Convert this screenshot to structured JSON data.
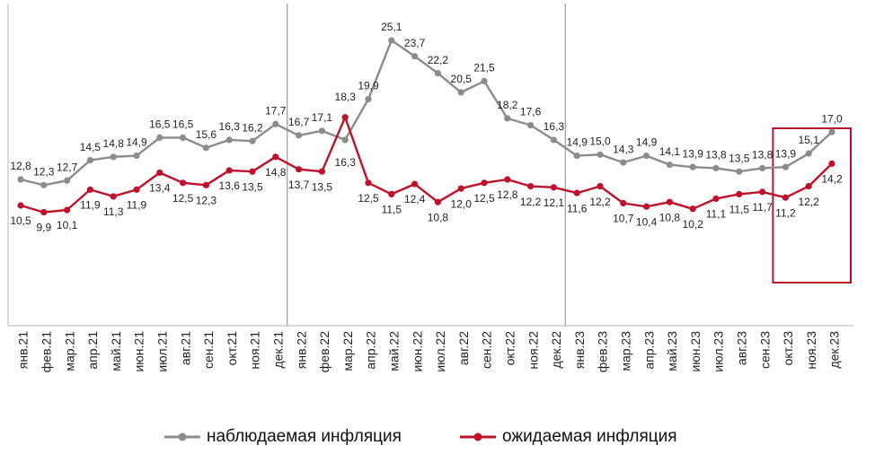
{
  "chart_data": {
    "type": "line",
    "title": "",
    "xlabel": "",
    "ylabel": "",
    "ylim": [
      5,
      27
    ],
    "grid": false,
    "legend_position": "bottom",
    "categories": [
      "янв.21",
      "фев.21",
      "мар.21",
      "апр.21",
      "май.21",
      "июн.21",
      "июл.21",
      "авг.21",
      "сен.21",
      "окт.21",
      "ноя.21",
      "дек.21",
      "янв.22",
      "фев.22",
      "мар.22",
      "апр.22",
      "май.22",
      "июн.22",
      "июл.22",
      "авг.22",
      "сен.22",
      "окт.22",
      "ноя.22",
      "дек.22",
      "янв.23",
      "фев.23",
      "мар.23",
      "апр.23",
      "май.23",
      "июн.23",
      "июл.23",
      "авг.23",
      "сен.23",
      "окт.23",
      "ноя.23",
      "дек.23"
    ],
    "series": [
      {
        "name": "наблюдаемая  инфляция",
        "color": "#8c8c8c",
        "values": [
          12.8,
          12.3,
          12.7,
          14.5,
          14.8,
          14.9,
          16.5,
          16.5,
          15.6,
          16.3,
          16.2,
          17.7,
          16.7,
          17.1,
          16.3,
          19.9,
          25.1,
          23.7,
          22.2,
          20.5,
          21.5,
          18.2,
          17.6,
          16.3,
          14.9,
          15.0,
          14.3,
          14.9,
          14.1,
          13.9,
          13.8,
          13.5,
          13.8,
          13.9,
          15.1,
          17.0
        ],
        "labels": [
          "12,8",
          "12,3",
          "12,7",
          "14,5",
          "14,8",
          "14,9",
          "16,5",
          "16,5",
          "15,6",
          "16,3",
          "16,2",
          "17,7",
          "16,7",
          "17,1",
          "16,3",
          "19,9",
          "25,1",
          "23,7",
          "22,2",
          "20,5",
          "21,5",
          "18,2",
          "17,6",
          "16,3",
          "14,9",
          "15,0",
          "14,3",
          "14,9",
          "14,1",
          "13,9",
          "13,8",
          "13,5",
          "13,8",
          "13,9",
          "15,1",
          "17,0"
        ]
      },
      {
        "name": "ожидаемая  инфляция",
        "color": "#c0112a",
        "values": [
          10.5,
          9.9,
          10.1,
          11.9,
          11.3,
          11.9,
          13.4,
          12.5,
          12.3,
          13.6,
          13.5,
          14.8,
          13.7,
          13.5,
          18.3,
          12.5,
          11.5,
          12.4,
          10.8,
          12.0,
          12.5,
          12.8,
          12.2,
          12.1,
          11.6,
          12.2,
          10.7,
          10.4,
          10.8,
          10.2,
          11.1,
          11.5,
          11.7,
          11.2,
          12.2,
          14.2
        ],
        "labels": [
          "10,5",
          "9,9",
          "10,1",
          "11,9",
          "11,3",
          "11,9",
          "13,4",
          "12,5",
          "12,3",
          "13,6",
          "13,5",
          "14,8",
          "13,7",
          "13,5",
          "18,3",
          "12,5",
          "11,5",
          "12,4",
          "10,8",
          "12,0",
          "12,5",
          "12,8",
          "12,2",
          "12,1",
          "11,6",
          "12,2",
          "10,7",
          "10,4",
          "10,8",
          "10,2",
          "11,1",
          "11,5",
          "11,7",
          "11,2",
          "12,2",
          "14,2"
        ]
      }
    ],
    "separators_after": [
      "дек.21",
      "дек.22"
    ],
    "highlight": {
      "from": "окт.23",
      "to": "дек.23",
      "color": "#c0112a"
    }
  }
}
